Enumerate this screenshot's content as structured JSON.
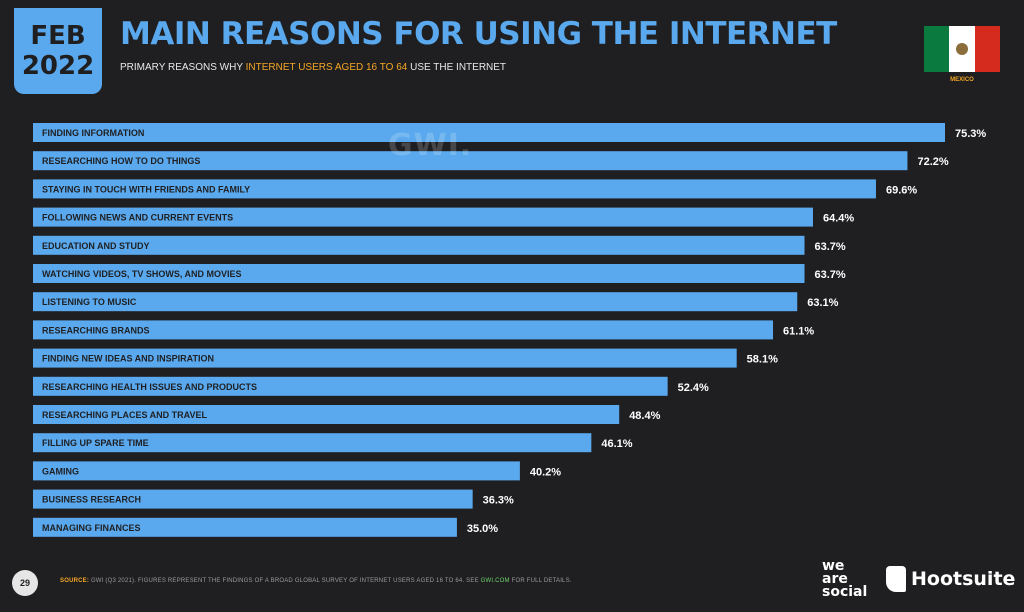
{
  "header": {
    "month": "FEB",
    "year": "2022",
    "title": "MAIN REASONS FOR USING THE INTERNET",
    "subtitle_pre": "PRIMARY REASONS WHY ",
    "subtitle_hl": "INTERNET USERS AGED 16 TO 64",
    "subtitle_post": " USE THE INTERNET",
    "country": "MEXICO"
  },
  "watermark": "GWI.",
  "footer": {
    "page": "29",
    "source_label": "SOURCE:",
    "source_text": " GWI (Q3 2021). FIGURES REPRESENT THE FINDINGS OF A BROAD GLOBAL SURVEY OF INTERNET USERS AGED 16 TO 64. SEE ",
    "source_link": "GWI.COM",
    "source_end": " FOR FULL DETAILS.",
    "brand1": "we are social",
    "brand2": "Hootsuite"
  },
  "colors": {
    "bar": "#5aa9ee",
    "accent": "#f5a623",
    "background": "#1f1f21"
  },
  "chart_data": {
    "type": "bar",
    "orientation": "horizontal",
    "categories": [
      "FINDING INFORMATION",
      "RESEARCHING HOW TO DO THINGS",
      "STAYING IN TOUCH WITH FRIENDS AND FAMILY",
      "FOLLOWING NEWS AND CURRENT EVENTS",
      "EDUCATION AND STUDY",
      "WATCHING VIDEOS, TV SHOWS, AND MOVIES",
      "LISTENING TO MUSIC",
      "RESEARCHING BRANDS",
      "FINDING NEW IDEAS AND INSPIRATION",
      "RESEARCHING HEALTH ISSUES AND PRODUCTS",
      "RESEARCHING PLACES AND TRAVEL",
      "FILLING UP SPARE TIME",
      "GAMING",
      "BUSINESS RESEARCH",
      "MANAGING FINANCES"
    ],
    "values": [
      75.3,
      72.2,
      69.6,
      64.4,
      63.7,
      63.7,
      63.1,
      61.1,
      58.1,
      52.4,
      48.4,
      46.1,
      40.2,
      36.3,
      35.0
    ],
    "labels": [
      "75.3%",
      "72.2%",
      "69.6%",
      "64.4%",
      "63.7%",
      "63.7%",
      "63.1%",
      "61.1%",
      "58.1%",
      "52.4%",
      "48.4%",
      "46.1%",
      "40.2%",
      "36.3%",
      "35.0%"
    ],
    "xlim": [
      0,
      100
    ],
    "grid": false
  }
}
